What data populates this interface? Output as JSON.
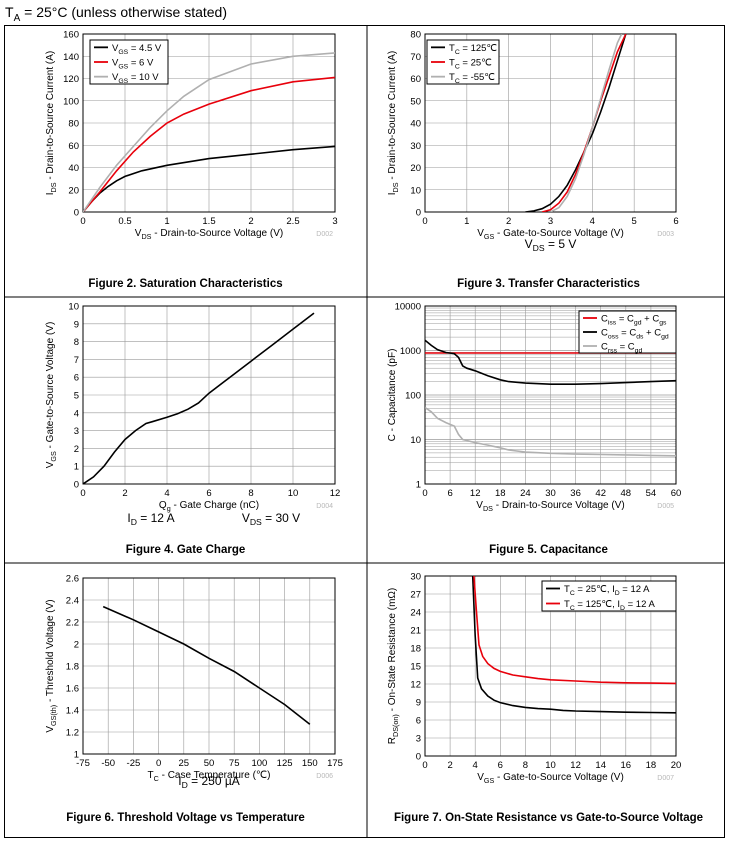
{
  "page": {
    "conditions_prefix": "T",
    "conditions_sub": "A",
    "conditions_rest": " = 25°C (unless otherwise stated)"
  },
  "charts": [
    {
      "id": "fig2",
      "caption": "Figure 2. Saturation Characteristics",
      "xlabel": [
        "V",
        "DS",
        " - Drain-to-Source Voltage (V)"
      ],
      "ylabel": [
        "I",
        "DS",
        " - Drain-to-Source Current (A)"
      ],
      "code": "D002",
      "notes": [],
      "xticks": [
        "0",
        "0.5",
        "1",
        "1.5",
        "2",
        "2.5",
        "3"
      ],
      "yticks": [
        "0",
        "20",
        "40",
        "60",
        "80",
        "100",
        "120",
        "140",
        "160"
      ],
      "legend": [
        [
          "V",
          "GS",
          " = 4.5 V"
        ],
        [
          "V",
          "GS",
          " = 6 V"
        ],
        [
          "V",
          "GS",
          " = 10 V"
        ]
      ]
    },
    {
      "id": "fig3",
      "caption": "Figure 3. Transfer Characteristics",
      "xlabel": [
        "V",
        "GS",
        " - Gate-to-Source Voltage (V)"
      ],
      "ylabel": [
        "I",
        "DS",
        " - Drain-to-Source Current (A)"
      ],
      "code": "D003",
      "notes": [
        [
          [
            "V",
            "DS",
            " = 5 V"
          ]
        ]
      ],
      "xticks": [
        "0",
        "1",
        "2",
        "3",
        "4",
        "5",
        "6"
      ],
      "yticks": [
        "0",
        "10",
        "20",
        "30",
        "40",
        "50",
        "60",
        "70",
        "80"
      ],
      "legend": [
        [
          "T",
          "C",
          " = 125℃"
        ],
        [
          "T",
          "C",
          " = 25℃"
        ],
        [
          "T",
          "C",
          " = -55℃"
        ]
      ]
    },
    {
      "id": "fig4",
      "caption": "Figure 4. Gate Charge",
      "xlabel": [
        "Q",
        "g",
        " - Gate Charge (nC)"
      ],
      "ylabel": [
        "V",
        "GS",
        " - Gate-to-Source Voltage (V)"
      ],
      "code": "D004",
      "notes": [
        [
          [
            "I",
            "D",
            " = 12 A"
          ],
          [
            "V",
            "DS",
            " = 30 V"
          ]
        ]
      ],
      "xticks": [
        "0",
        "2",
        "4",
        "6",
        "8",
        "10",
        "12"
      ],
      "yticks": [
        "0",
        "1",
        "2",
        "3",
        "4",
        "5",
        "6",
        "7",
        "8",
        "9",
        "10"
      ],
      "legend": []
    },
    {
      "id": "fig5",
      "caption": "Figure 5. Capacitance",
      "xlabel": [
        "V",
        "DS",
        " - Drain-to-Source Voltage (V)"
      ],
      "ylabel": [
        "C - Capacitance (pF)",
        "",
        ""
      ],
      "code": "D005",
      "notes": [],
      "xticks": [
        "0",
        "6",
        "12",
        "18",
        "24",
        "30",
        "36",
        "42",
        "48",
        "54",
        "60"
      ],
      "yticks": [
        "1",
        "10",
        "100",
        "1000",
        "10000"
      ],
      "legend": [
        [
          "C",
          "iss",
          " = C",
          "gd",
          " + C",
          "gs"
        ],
        [
          "C",
          "oss",
          " = C",
          "ds",
          " + C",
          "gd"
        ],
        [
          "C",
          "rss",
          " = C",
          "gd"
        ]
      ]
    },
    {
      "id": "fig6",
      "caption": "Figure 6. Threshold Voltage vs Temperature",
      "xlabel": [
        "T",
        "C",
        " - Case Temperature (℃)"
      ],
      "ylabel": [
        "V",
        "GS(th)",
        " - Threshold Voltage (V)"
      ],
      "code": "D006",
      "notes": [
        [
          [
            "I",
            "D",
            " = 250 µA"
          ]
        ]
      ],
      "xticks": [
        "-75",
        "-50",
        "-25",
        "0",
        "25",
        "50",
        "75",
        "100",
        "125",
        "150",
        "175"
      ],
      "yticks": [
        "1",
        "1.2",
        "1.4",
        "1.6",
        "1.8",
        "2",
        "2.2",
        "2.4",
        "2.6"
      ],
      "legend": []
    },
    {
      "id": "fig7",
      "caption": "Figure 7. On-State Resistance vs Gate-to-Source Voltage",
      "xlabel": [
        "V",
        "GS",
        " - Gate-to-Source Voltage (V)"
      ],
      "ylabel": [
        "R",
        "DS(on)",
        " - On-State Resistance (mΩ)"
      ],
      "code": "D007",
      "notes": [],
      "xticks": [
        "0",
        "2",
        "4",
        "6",
        "8",
        "10",
        "12",
        "14",
        "16",
        "18",
        "20"
      ],
      "yticks": [
        "0",
        "3",
        "6",
        "9",
        "12",
        "15",
        "18",
        "21",
        "24",
        "27",
        "30"
      ],
      "legend": [
        [
          "T",
          "C",
          " = 25℃, I",
          "D",
          " = 12 A"
        ],
        [
          "T",
          "C",
          " = 125℃, I",
          "D",
          " = 12 A"
        ]
      ]
    }
  ],
  "chart_data": [
    {
      "type": "line",
      "xlim": [
        0,
        3
      ],
      "ylim": [
        0,
        160
      ],
      "grid": true,
      "legend_position": "top-left",
      "series": [
        {
          "color": "#000000",
          "x": [
            0,
            0.1,
            0.2,
            0.3,
            0.4,
            0.5,
            0.7,
            1.0,
            1.5,
            2.0,
            2.5,
            3.0
          ],
          "y": [
            0,
            9,
            17,
            23,
            28,
            32,
            37,
            42,
            48,
            52,
            56,
            59
          ]
        },
        {
          "color": "#e8000b",
          "x": [
            0,
            0.2,
            0.4,
            0.6,
            0.8,
            1.0,
            1.2,
            1.5,
            2.0,
            2.5,
            3.0
          ],
          "y": [
            0,
            18,
            37,
            54,
            68,
            80,
            88,
            97,
            109,
            117,
            121
          ]
        },
        {
          "color": "#b0b0b0",
          "x": [
            0,
            0.2,
            0.4,
            0.6,
            0.8,
            1.0,
            1.2,
            1.5,
            2.0,
            2.5,
            3.0
          ],
          "y": [
            0,
            22,
            42,
            59,
            76,
            91,
            104,
            119,
            133,
            140,
            143
          ]
        }
      ]
    },
    {
      "type": "line",
      "xlim": [
        0,
        6
      ],
      "ylim": [
        0,
        80
      ],
      "grid": true,
      "legend_position": "top-left",
      "series": [
        {
          "color": "#000000",
          "x": [
            2.4,
            2.6,
            2.8,
            3.0,
            3.2,
            3.4,
            3.6,
            3.8,
            4.0,
            4.2,
            4.4,
            4.6,
            4.8
          ],
          "y": [
            0,
            0.5,
            1.5,
            3.5,
            7,
            12,
            19,
            27,
            35,
            45,
            56,
            68,
            80
          ]
        },
        {
          "color": "#e8000b",
          "x": [
            2.8,
            3.0,
            3.2,
            3.4,
            3.6,
            3.8,
            4.0,
            4.2,
            4.4,
            4.6,
            4.8
          ],
          "y": [
            0,
            1,
            4,
            9,
            17,
            27,
            38,
            50,
            61,
            72,
            80
          ]
        },
        {
          "color": "#b0b0b0",
          "x": [
            3.0,
            3.2,
            3.4,
            3.6,
            3.8,
            4.0,
            4.2,
            4.4,
            4.6,
            4.7
          ],
          "y": [
            0,
            2,
            7,
            15,
            26,
            38,
            51,
            64,
            76,
            80
          ]
        }
      ]
    },
    {
      "type": "line",
      "xlim": [
        0,
        12
      ],
      "ylim": [
        0,
        10
      ],
      "grid": true,
      "legend_position": "none",
      "series": [
        {
          "color": "#000000",
          "x": [
            0,
            0.5,
            1,
            1.5,
            2,
            2.5,
            3,
            3.3,
            4,
            4.5,
            5,
            5.5,
            6,
            7,
            8,
            9,
            10,
            11
          ],
          "y": [
            0,
            0.4,
            1,
            1.8,
            2.5,
            3.0,
            3.4,
            3.5,
            3.75,
            3.95,
            4.2,
            4.55,
            5.1,
            6.0,
            6.9,
            7.8,
            8.7,
            9.6
          ]
        }
      ]
    },
    {
      "type": "line",
      "xlim": [
        0,
        60
      ],
      "ylim": [
        1,
        10000
      ],
      "yscale": "log",
      "grid": true,
      "legend_position": "top-right",
      "series": [
        {
          "color": "#e8000b",
          "x": [
            0,
            10,
            20,
            30,
            40,
            50,
            60
          ],
          "y": [
            880,
            880,
            880,
            880,
            880,
            880,
            880
          ]
        },
        {
          "color": "#000000",
          "x": [
            0,
            1.5,
            3,
            5,
            7,
            8,
            9,
            10,
            12,
            15,
            18,
            20,
            24,
            30,
            36,
            42,
            48,
            54,
            60
          ],
          "y": [
            1700,
            1300,
            1050,
            900,
            850,
            700,
            450,
            400,
            350,
            270,
            220,
            200,
            185,
            175,
            175,
            180,
            190,
            200,
            210
          ]
        },
        {
          "color": "#b0b0b0",
          "x": [
            0,
            1.5,
            3,
            5,
            7,
            8,
            9,
            10,
            12,
            15,
            18,
            20,
            24,
            30,
            36,
            42,
            48,
            54,
            60
          ],
          "y": [
            52,
            42,
            30,
            24,
            20,
            13,
            10,
            9.5,
            8.5,
            7.5,
            6.5,
            5.8,
            5.2,
            4.9,
            4.7,
            4.6,
            4.5,
            4.4,
            4.3
          ]
        }
      ]
    },
    {
      "type": "line",
      "xlim": [
        -75,
        175
      ],
      "ylim": [
        1,
        2.6
      ],
      "grid": true,
      "legend_position": "none",
      "series": [
        {
          "color": "#000000",
          "x": [
            -55,
            -25,
            0,
            25,
            50,
            75,
            100,
            125,
            150
          ],
          "y": [
            2.34,
            2.22,
            2.11,
            2.0,
            1.87,
            1.75,
            1.6,
            1.45,
            1.27
          ]
        }
      ]
    },
    {
      "type": "line",
      "xlim": [
        0,
        20
      ],
      "ylim": [
        0,
        30
      ],
      "grid": true,
      "legend_position": "top-right",
      "series": [
        {
          "color": "#000000",
          "x": [
            3.8,
            4.0,
            4.2,
            4.5,
            5,
            5.5,
            6,
            7,
            8,
            9,
            10,
            11,
            12,
            14,
            16,
            18,
            20
          ],
          "y": [
            30,
            20,
            13,
            11.2,
            10,
            9.3,
            8.9,
            8.4,
            8.1,
            7.9,
            7.8,
            7.6,
            7.5,
            7.4,
            7.3,
            7.25,
            7.2
          ]
        },
        {
          "color": "#e8000b",
          "x": [
            3.9,
            4.1,
            4.3,
            4.6,
            5,
            5.5,
            6,
            7,
            8,
            9,
            10,
            12,
            14,
            16,
            18,
            20
          ],
          "y": [
            30,
            24,
            18.5,
            16.6,
            15.4,
            14.6,
            14.1,
            13.5,
            13.2,
            12.9,
            12.7,
            12.5,
            12.3,
            12.2,
            12.15,
            12.1
          ]
        }
      ]
    }
  ]
}
